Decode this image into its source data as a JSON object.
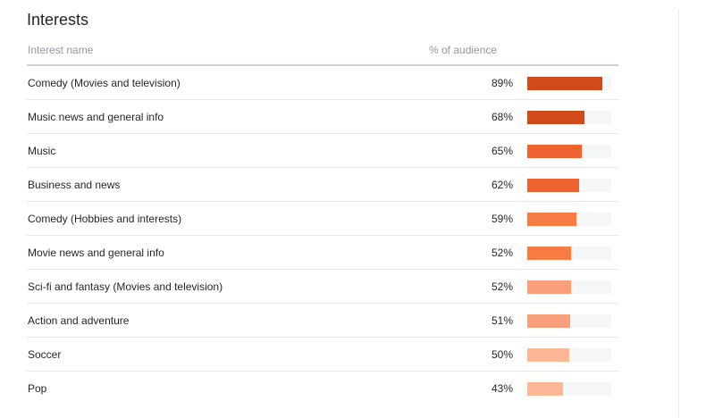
{
  "panel": {
    "title": "Interests",
    "col_name": "Interest name",
    "col_pct": "% of audience"
  },
  "chart_data": {
    "type": "bar",
    "orientation": "horizontal",
    "title": "Interests",
    "columns": [
      "Interest name",
      "% of audience"
    ],
    "xlim": [
      0,
      100
    ],
    "categories": [
      "Comedy (Movies and television)",
      "Music news and general info",
      "Music",
      "Business and news",
      "Comedy (Hobbies and interests)",
      "Movie news and general info",
      "Sci-fi and fantasy (Movies and television)",
      "Action and adventure",
      "Soccer",
      "Pop"
    ],
    "values": [
      89,
      68,
      65,
      62,
      59,
      52,
      52,
      51,
      50,
      43
    ],
    "labels": [
      "89%",
      "68%",
      "65%",
      "62%",
      "59%",
      "52%",
      "52%",
      "51%",
      "50%",
      "43%"
    ],
    "colors": [
      "#d14b1a",
      "#d14b1a",
      "#ee6230",
      "#ee6230",
      "#f67c44",
      "#f67c44",
      "#f9a07a",
      "#f9a07a",
      "#fcb896",
      "#fcb896"
    ],
    "track_color": "#f4f6f8"
  }
}
